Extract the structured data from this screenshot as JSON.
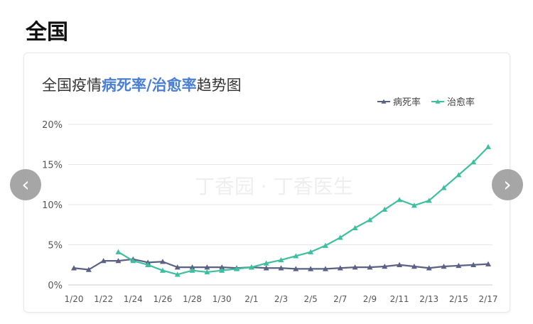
{
  "section": {
    "title": "全国"
  },
  "navigation": {
    "prev_icon": "‹",
    "next_icon": "›"
  },
  "colors": {
    "death": "#5a6185",
    "cure": "#3ebf9f",
    "highlight": "#4a7fd4",
    "title": "#333333",
    "grid": "#e6e6e6",
    "axis_text": "#555555"
  },
  "chart_data": {
    "type": "line",
    "title_parts": [
      {
        "text": "全国疫情",
        "highlight": false
      },
      {
        "text": "病死率",
        "highlight": true
      },
      {
        "text": "/",
        "highlight": true
      },
      {
        "text": "治愈率",
        "highlight": true
      },
      {
        "text": "趋势图",
        "highlight": false
      }
    ],
    "watermark": "丁香园 · 丁香医生",
    "x": [
      "1/20",
      "1/21",
      "1/22",
      "1/23",
      "1/24",
      "1/25",
      "1/26",
      "1/27",
      "1/28",
      "1/29",
      "1/30",
      "1/31",
      "2/1",
      "2/2",
      "2/3",
      "2/4",
      "2/5",
      "2/6",
      "2/7",
      "2/8",
      "2/9",
      "2/10",
      "2/11",
      "2/12",
      "2/13",
      "2/14",
      "2/15",
      "2/16",
      "2/17"
    ],
    "x_tick_labels": [
      "1/20",
      "1/22",
      "1/24",
      "1/26",
      "1/28",
      "1/30",
      "2/1",
      "2/3",
      "2/5",
      "2/7",
      "2/9",
      "2/11",
      "2/13",
      "2/15",
      "2/17"
    ],
    "y_ticks": [
      {
        "value": 0,
        "label": "0%"
      },
      {
        "value": 5,
        "label": "5%"
      },
      {
        "value": 10,
        "label": "10%"
      },
      {
        "value": 15,
        "label": "15%"
      },
      {
        "value": 20,
        "label": "20%"
      }
    ],
    "ylim": [
      0,
      20
    ],
    "grid": true,
    "legend_position": "top-right",
    "series": [
      {
        "name": "病死率",
        "key": "death",
        "values": [
          2.1,
          1.9,
          3.0,
          3.0,
          3.2,
          2.8,
          2.9,
          2.2,
          2.2,
          2.2,
          2.2,
          2.1,
          2.2,
          2.1,
          2.1,
          2.0,
          2.0,
          2.0,
          2.1,
          2.2,
          2.2,
          2.3,
          2.5,
          2.3,
          2.1,
          2.3,
          2.4,
          2.5,
          2.6
        ]
      },
      {
        "name": "治愈率",
        "key": "cure",
        "values": [
          null,
          null,
          null,
          4.1,
          3.0,
          2.5,
          1.8,
          1.3,
          1.8,
          1.6,
          1.8,
          2.0,
          2.2,
          2.7,
          3.1,
          3.6,
          4.1,
          4.9,
          5.9,
          7.1,
          8.1,
          9.4,
          10.6,
          9.9,
          10.5,
          12.1,
          13.7,
          15.3,
          17.2
        ]
      }
    ]
  }
}
